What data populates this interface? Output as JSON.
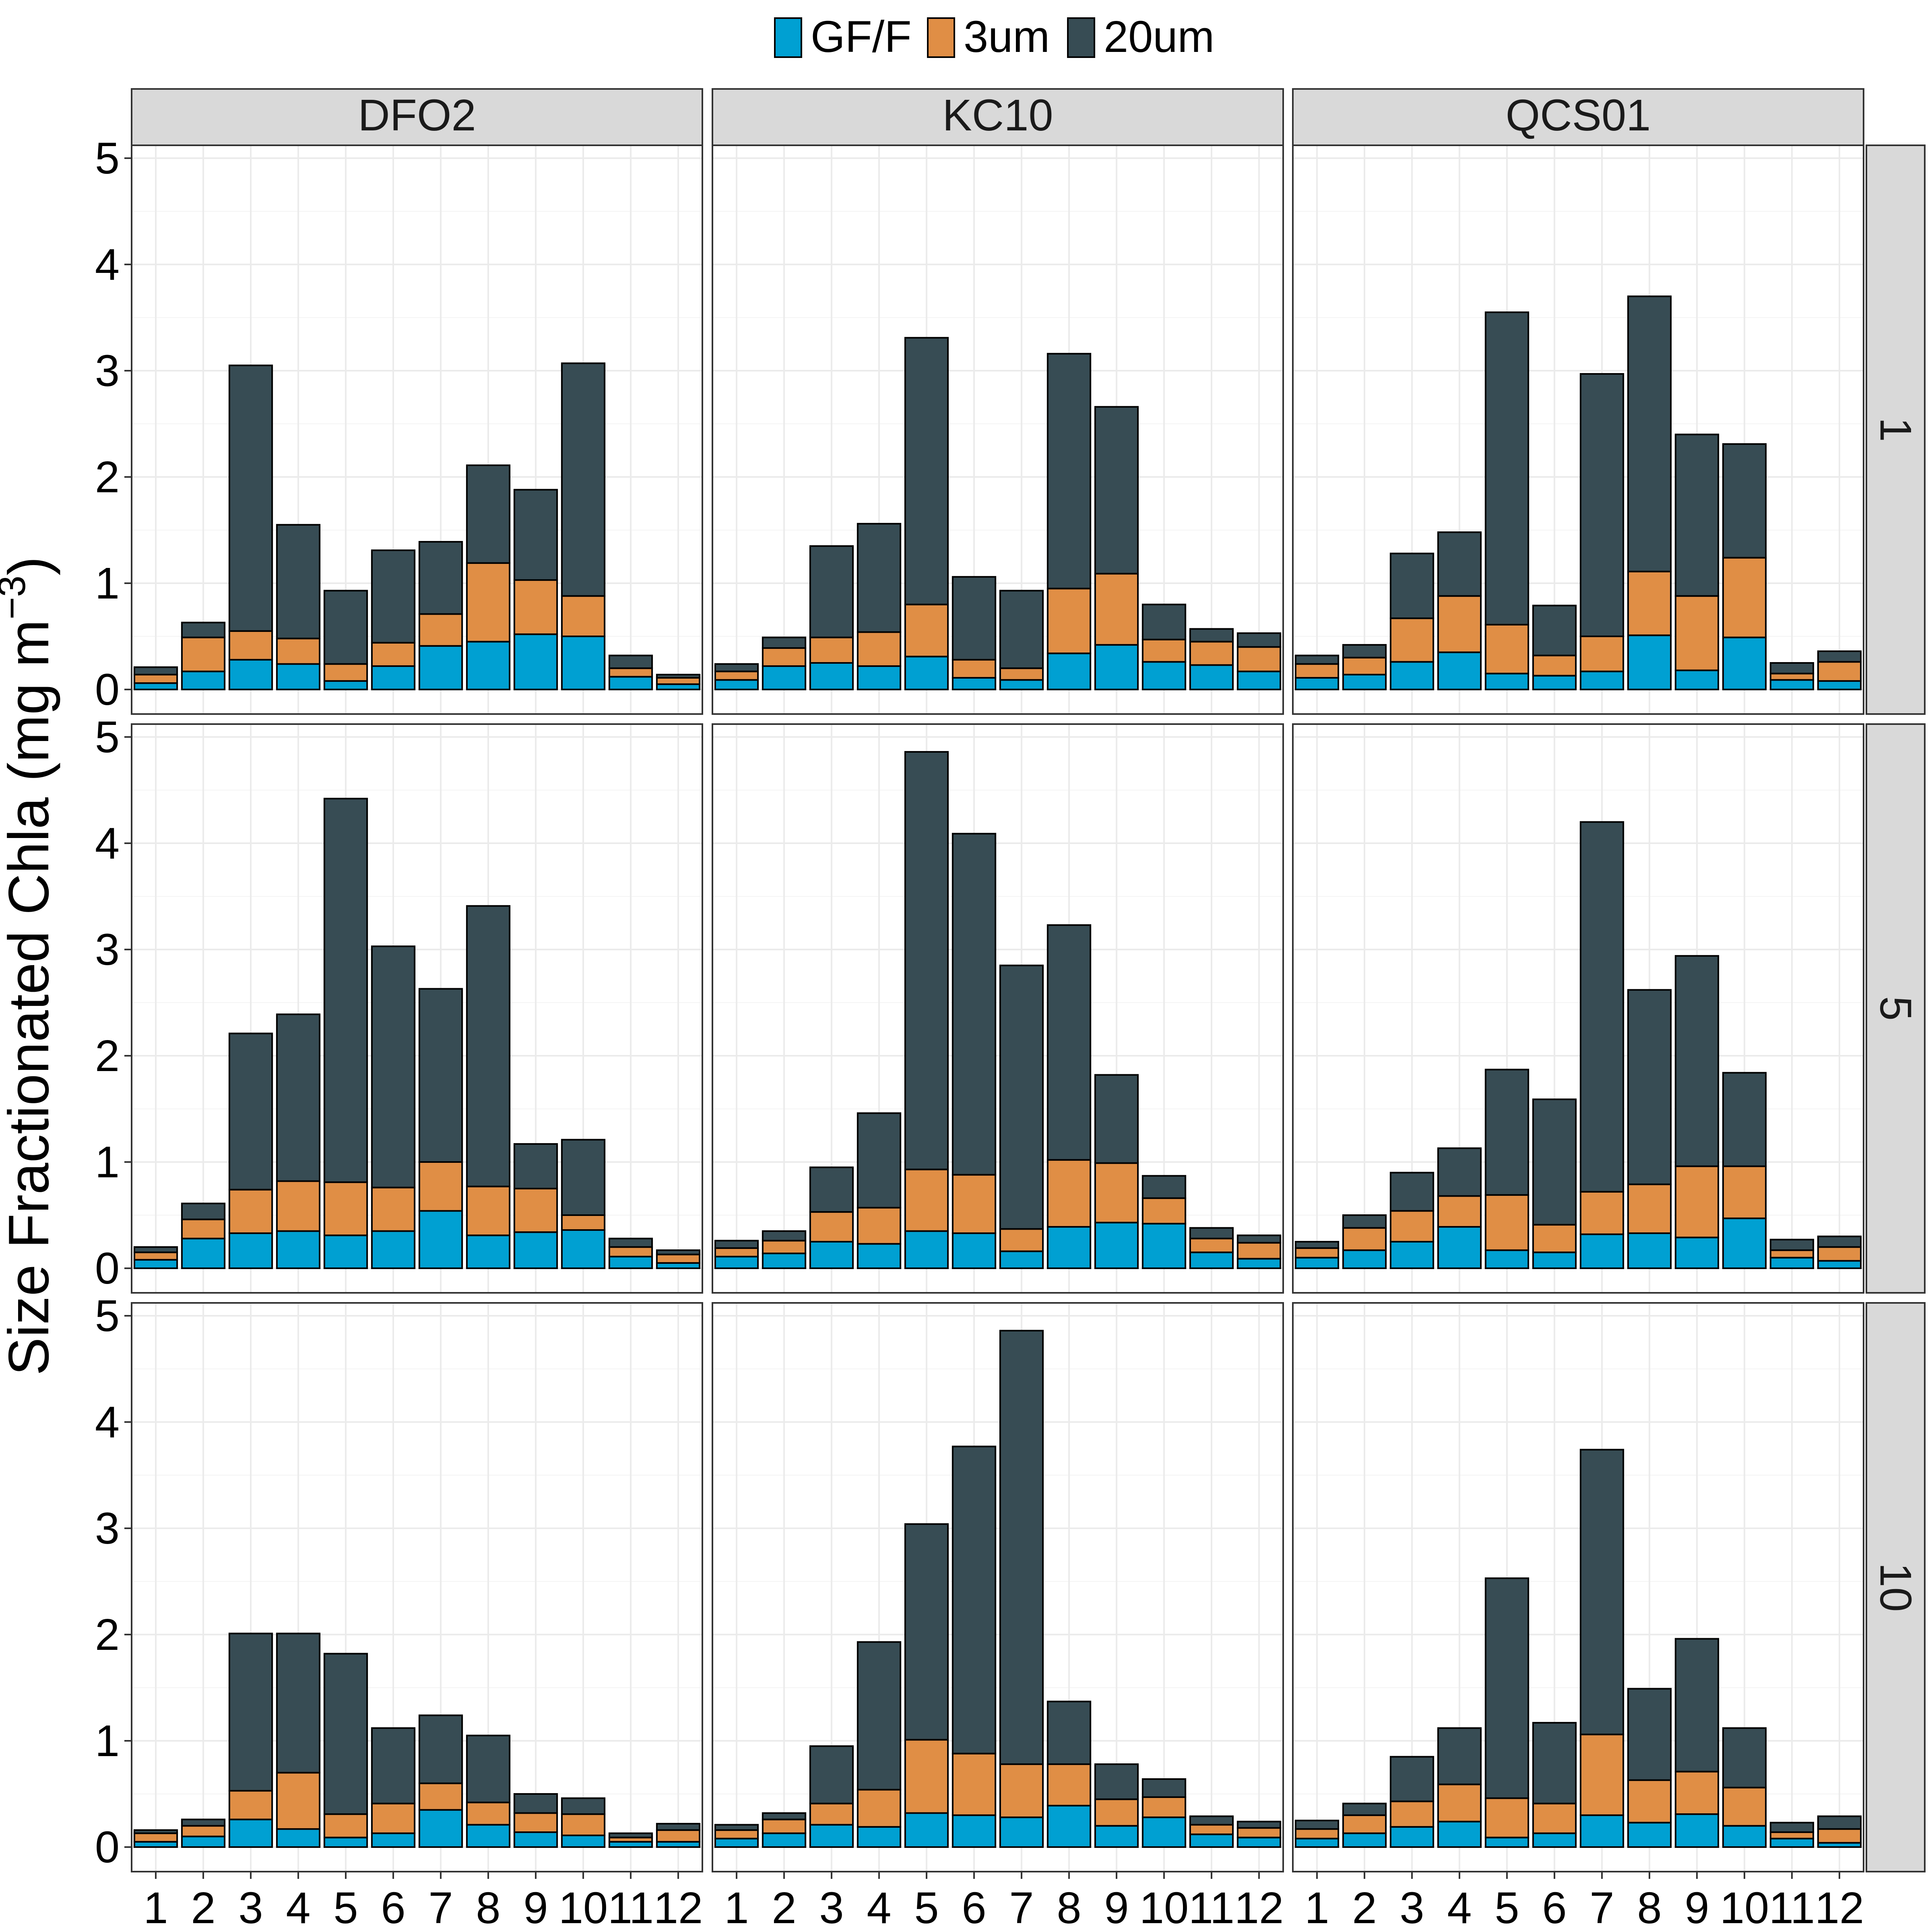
{
  "chart_data": {
    "type": "bar",
    "stacked": true,
    "ylabel": "Size Fractionated Chla (mg m",
    "ylabel_sup": "−3",
    "ylabel_close": ")",
    "ylim": [
      0,
      5
    ],
    "yticks": [
      0,
      1,
      2,
      3,
      4,
      5
    ],
    "grid": true,
    "legend_position": "top",
    "categories": [
      "1",
      "2",
      "3",
      "4",
      "5",
      "6",
      "7",
      "8",
      "9",
      "10",
      "11",
      "12"
    ],
    "series": [
      {
        "name": "GF/F",
        "color": "#00A0D2"
      },
      {
        "name": "3um",
        "color": "#E08E45"
      },
      {
        "name": "20um",
        "color": "#374C54"
      }
    ],
    "columns": [
      "DFO2",
      "KC10",
      "QCS01"
    ],
    "rows": [
      "1",
      "5",
      "10"
    ],
    "panels": [
      {
        "column": "DFO2",
        "row": "1",
        "GFF": [
          0.06,
          0.17,
          0.28,
          0.24,
          0.08,
          0.22,
          0.41,
          0.45,
          0.52,
          0.5,
          0.12,
          0.05
        ],
        "um3": [
          0.08,
          0.32,
          0.27,
          0.24,
          0.16,
          0.22,
          0.3,
          0.74,
          0.51,
          0.38,
          0.08,
          0.06
        ],
        "um20": [
          0.07,
          0.14,
          2.5,
          1.07,
          0.69,
          0.87,
          0.68,
          0.92,
          0.85,
          2.19,
          0.12,
          0.03
        ]
      },
      {
        "column": "KC10",
        "row": "1",
        "GFF": [
          0.09,
          0.22,
          0.25,
          0.22,
          0.31,
          0.11,
          0.09,
          0.34,
          0.42,
          0.26,
          0.23,
          0.17
        ],
        "um3": [
          0.08,
          0.17,
          0.24,
          0.32,
          0.49,
          0.17,
          0.11,
          0.61,
          0.67,
          0.21,
          0.22,
          0.23
        ],
        "um20": [
          0.07,
          0.1,
          0.86,
          1.02,
          2.51,
          0.78,
          0.73,
          2.21,
          1.57,
          0.33,
          0.12,
          0.13
        ]
      },
      {
        "column": "QCS01",
        "row": "1",
        "GFF": [
          0.11,
          0.14,
          0.26,
          0.35,
          0.15,
          0.13,
          0.17,
          0.51,
          0.18,
          0.49,
          0.09,
          0.08
        ],
        "um3": [
          0.13,
          0.16,
          0.41,
          0.53,
          0.46,
          0.19,
          0.33,
          0.6,
          0.7,
          0.75,
          0.06,
          0.18
        ],
        "um20": [
          0.08,
          0.12,
          0.61,
          0.6,
          2.94,
          0.47,
          2.47,
          2.59,
          1.52,
          1.07,
          0.1,
          0.1
        ]
      },
      {
        "column": "DFO2",
        "row": "5",
        "GFF": [
          0.08,
          0.28,
          0.33,
          0.35,
          0.31,
          0.35,
          0.54,
          0.31,
          0.34,
          0.36,
          0.11,
          0.05
        ],
        "um3": [
          0.07,
          0.18,
          0.41,
          0.47,
          0.5,
          0.41,
          0.46,
          0.46,
          0.41,
          0.14,
          0.09,
          0.08
        ],
        "um20": [
          0.05,
          0.15,
          1.47,
          1.57,
          3.61,
          2.27,
          1.63,
          2.64,
          0.42,
          0.71,
          0.08,
          0.04
        ]
      },
      {
        "column": "KC10",
        "row": "5",
        "GFF": [
          0.11,
          0.14,
          0.25,
          0.23,
          0.35,
          0.33,
          0.16,
          0.39,
          0.43,
          0.42,
          0.15,
          0.09
        ],
        "um3": [
          0.08,
          0.12,
          0.28,
          0.34,
          0.58,
          0.55,
          0.21,
          0.63,
          0.56,
          0.24,
          0.13,
          0.15
        ],
        "um20": [
          0.07,
          0.09,
          0.42,
          0.89,
          3.93,
          3.21,
          2.48,
          2.21,
          0.83,
          0.21,
          0.1,
          0.07
        ]
      },
      {
        "column": "QCS01",
        "row": "5",
        "GFF": [
          0.1,
          0.17,
          0.25,
          0.39,
          0.17,
          0.15,
          0.32,
          0.33,
          0.29,
          0.47,
          0.1,
          0.07
        ],
        "um3": [
          0.09,
          0.21,
          0.29,
          0.29,
          0.52,
          0.26,
          0.4,
          0.46,
          0.67,
          0.49,
          0.07,
          0.13
        ],
        "um20": [
          0.06,
          0.12,
          0.36,
          0.45,
          1.18,
          1.18,
          3.48,
          1.83,
          1.98,
          0.88,
          0.1,
          0.1
        ]
      },
      {
        "column": "DFO2",
        "row": "10",
        "GFF": [
          0.05,
          0.1,
          0.26,
          0.17,
          0.09,
          0.13,
          0.35,
          0.21,
          0.14,
          0.11,
          0.05,
          0.05
        ],
        "um3": [
          0.08,
          0.1,
          0.27,
          0.53,
          0.22,
          0.28,
          0.25,
          0.21,
          0.18,
          0.2,
          0.04,
          0.11
        ],
        "um20": [
          0.03,
          0.06,
          1.48,
          1.31,
          1.51,
          0.71,
          0.64,
          0.63,
          0.18,
          0.15,
          0.04,
          0.06
        ]
      },
      {
        "column": "KC10",
        "row": "10",
        "GFF": [
          0.08,
          0.13,
          0.21,
          0.19,
          0.32,
          0.3,
          0.28,
          0.39,
          0.2,
          0.28,
          0.12,
          0.09
        ],
        "um3": [
          0.08,
          0.13,
          0.2,
          0.35,
          0.69,
          0.58,
          0.5,
          0.39,
          0.25,
          0.19,
          0.09,
          0.09
        ],
        "um20": [
          0.05,
          0.06,
          0.54,
          1.39,
          2.03,
          2.89,
          4.08,
          0.59,
          0.33,
          0.17,
          0.08,
          0.06
        ]
      },
      {
        "column": "QCS01",
        "row": "10",
        "GFF": [
          0.08,
          0.13,
          0.19,
          0.24,
          0.09,
          0.13,
          0.3,
          0.23,
          0.31,
          0.2,
          0.08,
          0.04
        ],
        "um3": [
          0.09,
          0.17,
          0.24,
          0.35,
          0.37,
          0.28,
          0.76,
          0.4,
          0.4,
          0.36,
          0.06,
          0.13
        ],
        "um20": [
          0.08,
          0.11,
          0.42,
          0.53,
          2.07,
          0.76,
          2.68,
          0.86,
          1.25,
          0.56,
          0.09,
          0.12
        ]
      }
    ]
  }
}
